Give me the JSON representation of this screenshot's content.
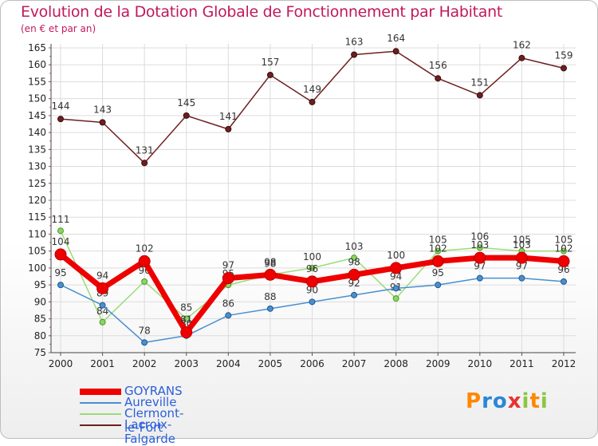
{
  "title": "Evolution de la Dotation Globale de Fonctionnement par Habitant",
  "subtitle": "(en € et par an)",
  "logo": {
    "text": "Proxiti",
    "letters": [
      "P",
      "r",
      "o",
      "x",
      "i",
      "t",
      "i"
    ],
    "colors": [
      "#ff8800",
      "#2b86d8",
      "#2b86d8",
      "#e83232",
      "#8cc63f",
      "#ff8800",
      "#8cc63f"
    ]
  },
  "chart_data": {
    "type": "line",
    "title": "Evolution de la Dotation Globale de Fonctionnement par Habitant",
    "subtitle": "(en € et par an)",
    "xlabel": "",
    "ylabel": "",
    "ylim": [
      75,
      165
    ],
    "yticks": [
      75,
      80,
      85,
      90,
      95,
      100,
      105,
      110,
      115,
      120,
      125,
      130,
      135,
      140,
      145,
      150,
      155,
      160,
      165
    ],
    "categories": [
      "2000",
      "2001",
      "2002",
      "2003",
      "2004",
      "2005",
      "2006",
      "2007",
      "2008",
      "2009",
      "2010",
      "2011",
      "2012"
    ],
    "legend_position": "bottom-left",
    "series": [
      {
        "name": "Lacroix-Falgarde",
        "color": "#6d1f1f",
        "values": [
          144,
          143,
          131,
          145,
          141,
          157,
          149,
          163,
          164,
          156,
          151,
          162,
          159
        ]
      },
      {
        "name": "Clermont-le-Fort",
        "color": "#99dd77",
        "values": [
          111,
          84,
          96,
          85,
          95,
          98,
          100,
          103,
          91,
          105,
          106,
          105,
          105
        ]
      },
      {
        "name": "Aureville",
        "color": "#4a8fcf",
        "values": [
          95,
          89,
          78,
          80,
          86,
          88,
          90,
          92,
          94,
          95,
          97,
          97,
          96
        ]
      },
      {
        "name": "GOYRANS",
        "color": "#ee0000",
        "values": [
          104,
          94,
          102,
          81,
          97,
          98,
          96,
          98,
          100,
          102,
          103,
          103,
          102
        ]
      }
    ],
    "legend": [
      "GOYRANS",
      "Aureville",
      "Clermont-le-Fort",
      "Lacroix-Falgarde"
    ]
  }
}
